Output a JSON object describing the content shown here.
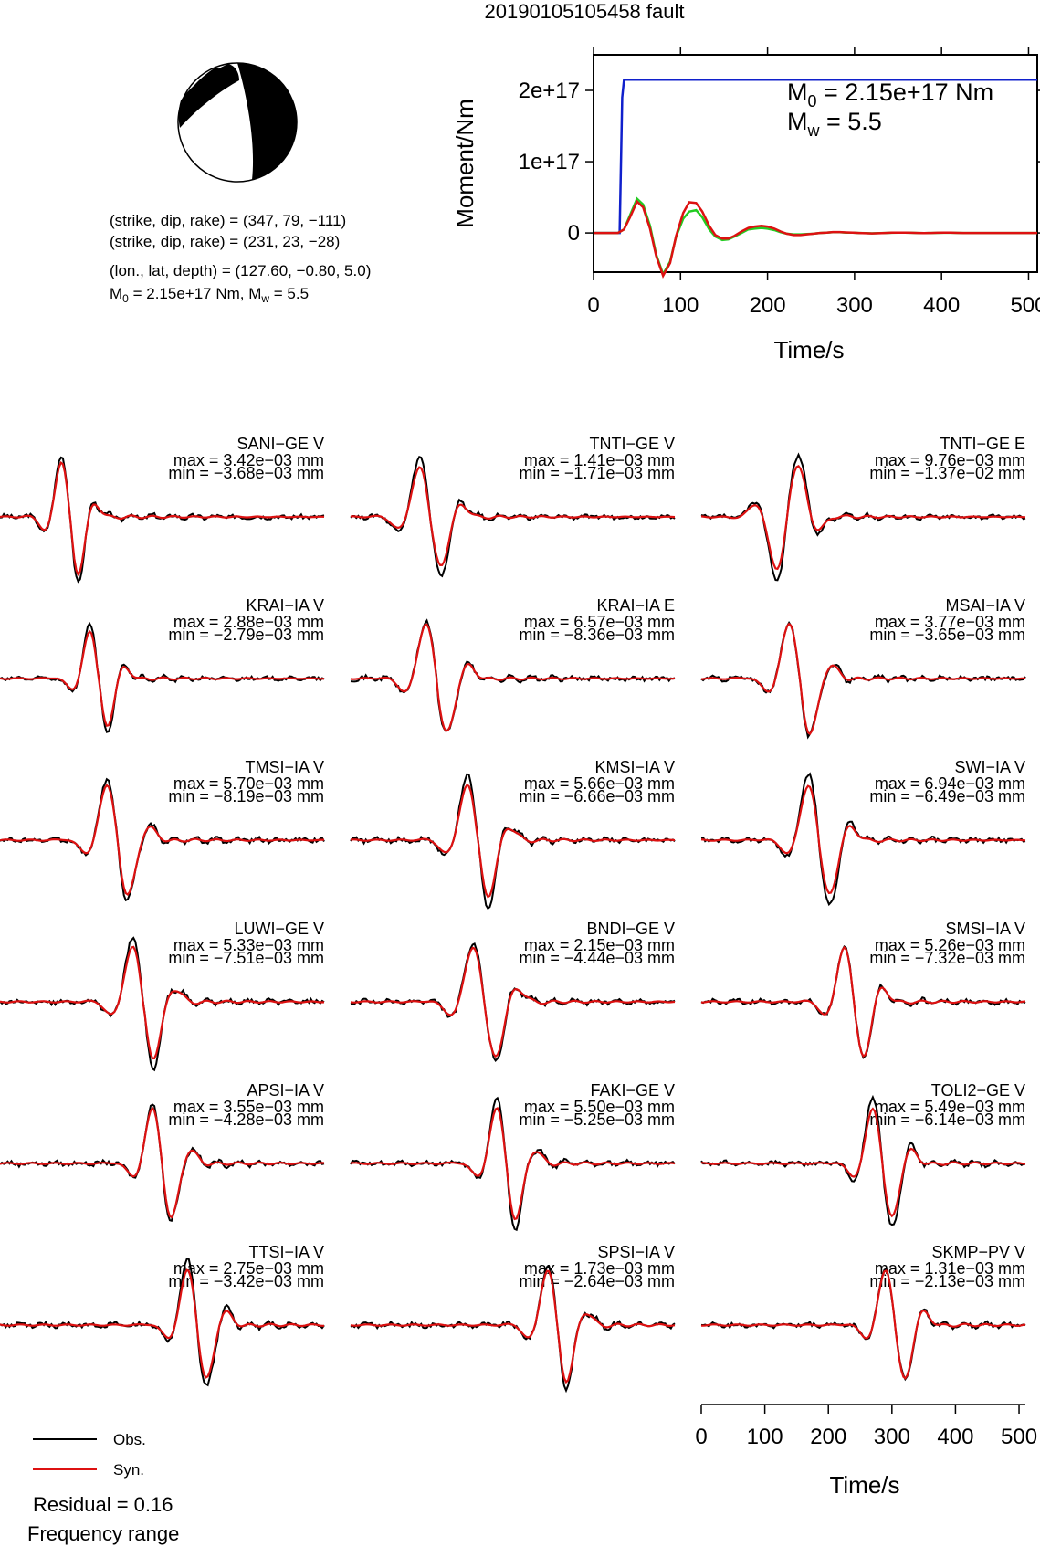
{
  "title": "20190105105458 fault",
  "colors": {
    "obs": "#000000",
    "syn": "#dd1111",
    "stf": "#1020cc",
    "green": "#22cc22",
    "beachball": "#000000"
  },
  "mechanism": {
    "plane1": "(strike, dip, rake) = (347, 79, −111)",
    "plane2": "(strike, dip, rake) = (231, 23, −28)",
    "location": "(lon., lat, depth) = (127.60, −0.80, 5.0)",
    "m0_label": "M",
    "m0_sub": "0",
    "m0_value": " = 2.15e+17 Nm, M",
    "mw_sub": "w",
    "mw_value": " = 5.5"
  },
  "chart_data": [
    {
      "type": "line",
      "name": "moment",
      "ylabel": "Moment/Nm",
      "xlabel": "Time/s",
      "xlim": [
        0,
        510
      ],
      "ylim": [
        -5.5e+16,
        2.5e+17
      ],
      "xticks": [
        "0",
        "100",
        "200",
        "300",
        "400",
        "500"
      ],
      "yticks": [
        "0",
        "1e+17",
        "2e+17"
      ],
      "annotation": {
        "m0_pre": "M",
        "m0_sub": "0",
        "m0_post": " = 2.15e+17 Nm",
        "mw_pre": "M",
        "mw_sub": "w",
        "mw_post": " = 5.5"
      },
      "series": [
        {
          "color": "#1020cc",
          "x": [
            0,
            30,
            31,
            33,
            35,
            510
          ],
          "y": [
            0,
            0,
            6e+16,
            1.9e+17,
            2.15e+17,
            2.15e+17
          ]
        },
        {
          "color": "#22cc22",
          "x": [
            0,
            28,
            35,
            42,
            50,
            57,
            65,
            72,
            80,
            88,
            95,
            103,
            110,
            118,
            125,
            133,
            140,
            148,
            155,
            162,
            170,
            178,
            185,
            193,
            200,
            208,
            215,
            222,
            230,
            238,
            245,
            253,
            260,
            268,
            275,
            283,
            290,
            298,
            305,
            313,
            320,
            328,
            335,
            343,
            350,
            358,
            365,
            373,
            380,
            388,
            395,
            403,
            410,
            418,
            425,
            433,
            440,
            448,
            455,
            463,
            470,
            478,
            485,
            493,
            500,
            510
          ],
          "y": [
            0,
            0,
            5000000000000000.0,
            2.5e+16,
            4.8e+16,
            4e+16,
            1e+16,
            -3e+16,
            -5.8e+16,
            -4e+16,
            -5000000000000000.0,
            2e+16,
            3e+16,
            3.2e+16,
            2.2e+16,
            5000000000000000.0,
            -5000000000000000.0,
            -1e+16,
            -9000000000000000.0,
            -5000000000000000.0,
            0.0,
            5000000000000000.0,
            6000000000000000.0,
            7000000000000000.0,
            6000000000000000.0,
            4000000000000000.0,
            1000000000000000.0,
            -1000000000000000.0,
            -2000000000000000.0,
            -2000000000000000.0,
            -1500000000000000.0,
            -1000000000000000.0,
            0,
            500000000000000.0,
            1000000000000000.0,
            1000000000000000.0,
            500000000000000.0,
            300000000000000.0,
            0,
            -300000000000000.0,
            -500000000000000.0,
            -300000000000000.0,
            0,
            200000000000000.0,
            300000000000000.0,
            300000000000000.0,
            200000000000000.0,
            0,
            -100000000000000.0,
            0,
            100000000000000.0,
            200000000000000.0,
            200000000000000.0,
            100000000000000.0,
            0,
            0,
            0,
            0,
            0,
            0,
            0,
            0,
            0,
            0,
            0,
            0
          ]
        },
        {
          "color": "#dd1111",
          "x": [
            0,
            28,
            35,
            42,
            50,
            57,
            65,
            72,
            80,
            88,
            95,
            103,
            110,
            118,
            125,
            133,
            140,
            148,
            155,
            162,
            170,
            178,
            185,
            193,
            200,
            208,
            215,
            222,
            230,
            238,
            245,
            253,
            260,
            268,
            275,
            283,
            290,
            298,
            305,
            313,
            320,
            328,
            335,
            343,
            350,
            358,
            365,
            373,
            380,
            388,
            395,
            403,
            410,
            418,
            425,
            433,
            440,
            448,
            455,
            463,
            470,
            478,
            485,
            493,
            500,
            510
          ],
          "y": [
            0,
            0,
            5000000000000000.0,
            2.2e+16,
            4.4e+16,
            3.6e+16,
            6000000000000000.0,
            -3.2e+16,
            -6e+16,
            -4.2e+16,
            -4000000000000000.0,
            2.8e+16,
            4.3e+16,
            4.2e+16,
            3e+16,
            1e+16,
            -3000000000000000.0,
            -8000000000000000.0,
            -8000000000000000.0,
            -4000000000000000.0,
            2000000000000000.0,
            7000000000000000.0,
            9000000000000000.0,
            1e+16,
            9000000000000000.0,
            6000000000000000.0,
            2000000000000000.0,
            -1000000000000000.0,
            -3000000000000000.0,
            -3000000000000000.0,
            -2000000000000000.0,
            -1000000000000000.0,
            0,
            500000000000000.0,
            1200000000000000.0,
            1200000000000000.0,
            800000000000000.0,
            400000000000000.0,
            0,
            -400000000000000.0,
            -600000000000000.0,
            -400000000000000.0,
            0,
            300000000000000.0,
            400000000000000.0,
            400000000000000.0,
            200000000000000.0,
            0,
            -100000000000000.0,
            0,
            200000000000000.0,
            300000000000000.0,
            300000000000000.0,
            100000000000000.0,
            0,
            0,
            0,
            0,
            0,
            0,
            0,
            0,
            0,
            0,
            0,
            0
          ]
        }
      ]
    },
    {
      "type": "line",
      "name": "waveforms",
      "xlabel": "Time/s",
      "xlim": [
        0,
        510
      ],
      "xticks": [
        "0",
        "100",
        "200",
        "300",
        "400",
        "500"
      ],
      "legend": [
        "Obs.",
        "Syn."
      ],
      "residual": "Residual = 0.16",
      "frequency": "Frequency range",
      "stations": [
        {
          "label": "SANI−GE V",
          "max": "max = 3.42e−03 mm",
          "min": "min = −3.68e−03 mm",
          "t": 110,
          "amp": 1.0,
          "f": 1.25,
          "sign": 1
        },
        {
          "label": "TNTI−GE V",
          "max": "max = 1.41e−03 mm",
          "min": "min = −1.71e−03 mm",
          "t": 125,
          "amp": 0.9,
          "f": 1.0,
          "sign": 1
        },
        {
          "label": "TNTI−GE E",
          "max": "max = 9.76e−03 mm",
          "min": "min = −1.37e−02 mm",
          "t": 135,
          "amp": 0.95,
          "f": 1.0,
          "sign": -1
        },
        {
          "label": "KRAI−IA V",
          "max": "max = 2.88e−03 mm",
          "min": "min = −2.79e−03 mm",
          "t": 155,
          "amp": 0.85,
          "f": 1.2,
          "sign": 1
        },
        {
          "label": "KRAI−IA E",
          "max": "max = 6.57e−03 mm",
          "min": "min = −8.36e−03 mm",
          "t": 135,
          "amp": 1.0,
          "f": 1.0,
          "sign": 1
        },
        {
          "label": "MSAI−IA V",
          "max": "max = 3.77e−03 mm",
          "min": "min = −3.65e−03 mm",
          "t": 155,
          "amp": 1.0,
          "f": 1.0,
          "sign": 1
        },
        {
          "label": "TMSI−IA V",
          "max": "max = 5.70e−03 mm",
          "min": "min = −8.19e−03 mm",
          "t": 185,
          "amp": 1.0,
          "f": 1.0,
          "sign": 1
        },
        {
          "label": "KMSI−IA V",
          "max": "max = 5.66e−03 mm",
          "min": "min = −6.66e−03 mm",
          "t": 200,
          "amp": 1.0,
          "f": 1.0,
          "sign": 1
        },
        {
          "label": "SWI−IA V",
          "max": "max = 6.94e−03 mm",
          "min": "min = −6.49e−03 mm",
          "t": 185,
          "amp": 1.0,
          "f": 1.0,
          "sign": 1
        },
        {
          "label": "LUWI−GE V",
          "max": "max = 5.33e−03 mm",
          "min": "min = −7.51e−03 mm",
          "t": 225,
          "amp": 1.0,
          "f": 1.0,
          "sign": 1
        },
        {
          "label": "BNDI−GE V",
          "max": "max = 2.15e−03 mm",
          "min": "min = −4.44e−03 mm",
          "t": 210,
          "amp": 1.0,
          "f": 0.95,
          "sign": 1
        },
        {
          "label": "SMSI−IA V",
          "max": "max = 5.26e−03 mm",
          "min": "min = −7.32e−03 mm",
          "t": 240,
          "amp": 1.0,
          "f": 1.1,
          "sign": 1
        },
        {
          "label": "APSI−IA V",
          "max": "max = 3.55e−03 mm",
          "min": "min = −4.28e−03 mm",
          "t": 255,
          "amp": 1.0,
          "f": 1.1,
          "sign": 1
        },
        {
          "label": "FAKI−GE V",
          "max": "max = 5.50e−03 mm",
          "min": "min = −5.25e−03 mm",
          "t": 245,
          "amp": 1.0,
          "f": 1.1,
          "sign": 1
        },
        {
          "label": "TOLI2−GE V",
          "max": "max = 5.49e−03 mm",
          "min": "min = −6.14e−03 mm",
          "t": 285,
          "amp": 1.0,
          "f": 1.1,
          "sign": 1
        },
        {
          "label": "TTSI−IA V",
          "max": "max = 2.75e−03 mm",
          "min": "min = −3.42e−03 mm",
          "t": 310,
          "amp": 1.0,
          "f": 1.1,
          "sign": 1
        },
        {
          "label": "SPSI−IA V",
          "max": "max = 1.73e−03 mm",
          "min": "min = −2.64e−03 mm",
          "t": 325,
          "amp": 1.0,
          "f": 1.1,
          "sign": 1
        },
        {
          "label": "SKMP−PV V",
          "max": "max = 1.31e−03 mm",
          "min": "min = −2.13e−03 mm",
          "t": 305,
          "amp": 1.0,
          "f": 1.1,
          "sign": 1
        }
      ]
    }
  ]
}
